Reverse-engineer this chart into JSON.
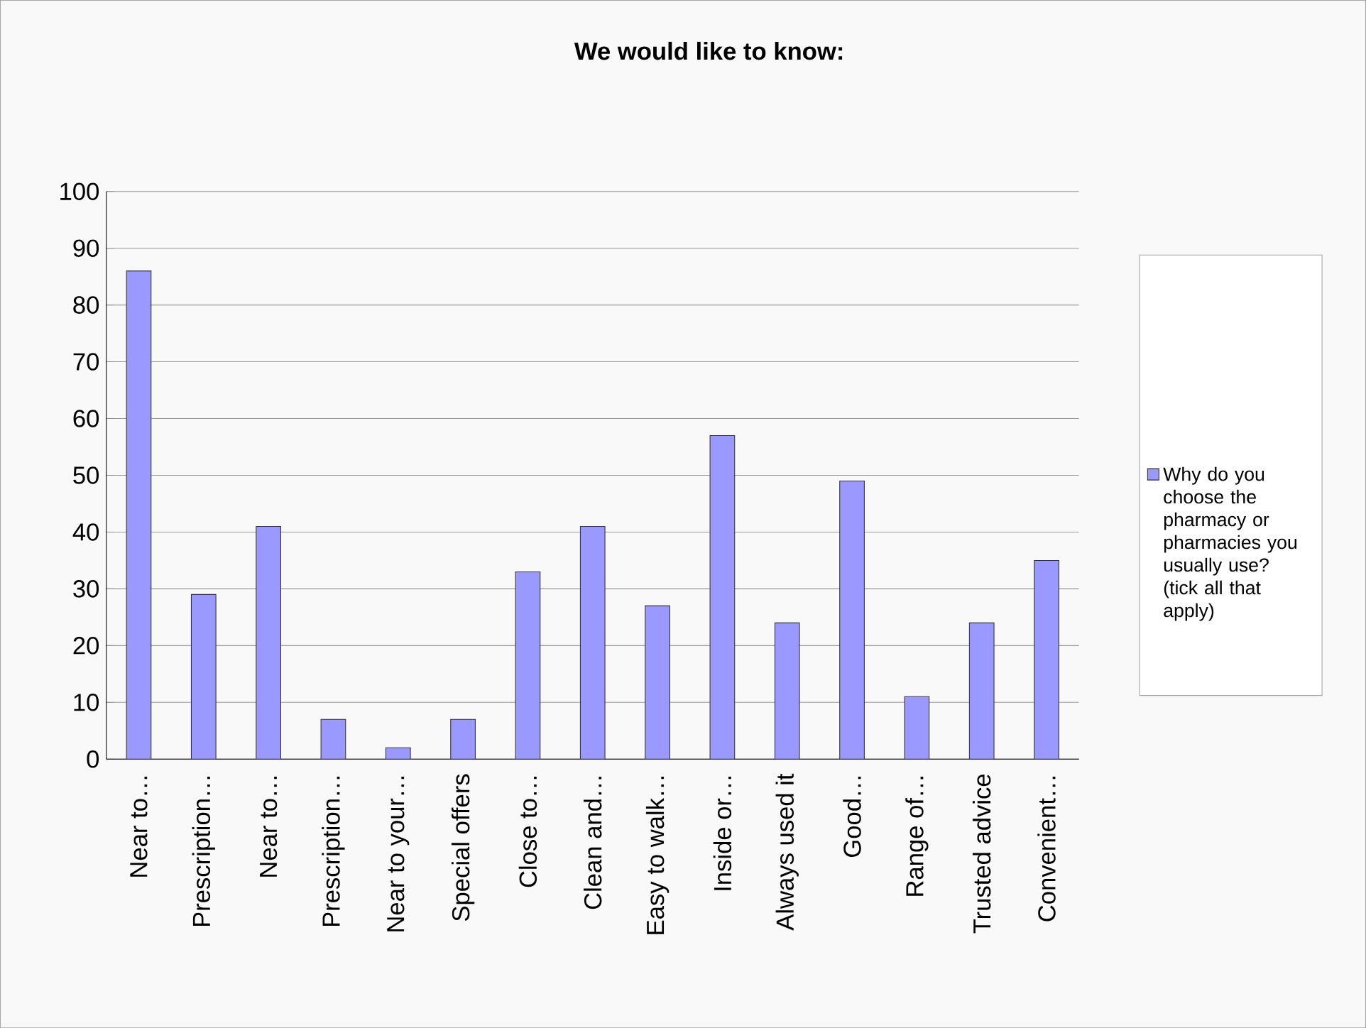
{
  "chart_data": {
    "type": "bar",
    "title": "We would like to know:",
    "categories": [
      "Near to…",
      "Prescription…",
      "Near  to…",
      "Prescription…",
      "Near to your…",
      "Special offers",
      "Close to…",
      "Clean and…",
      "Easy to walk…",
      "Inside or…",
      "Always used it",
      "Good…",
      "Range of…",
      "Trusted advice",
      "Convenient…"
    ],
    "series": [
      {
        "name": "Why do you choose the pharmacy or pharmacies you usually use? (tick all that apply)",
        "color": "#9999ff",
        "values": [
          86,
          29,
          41,
          7,
          2,
          7,
          33,
          41,
          27,
          57,
          24,
          49,
          11,
          24,
          35
        ]
      }
    ],
    "ylim": [
      0,
      100
    ],
    "yticks": [
      0,
      10,
      20,
      30,
      40,
      50,
      60,
      70,
      80,
      90,
      100
    ],
    "grid": "y",
    "legend": "right"
  }
}
